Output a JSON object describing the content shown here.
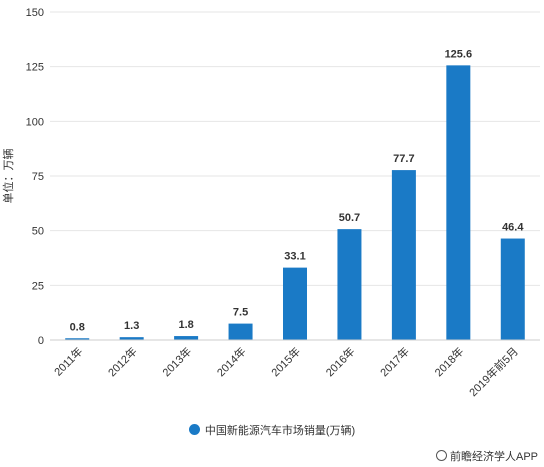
{
  "chart_data": {
    "type": "bar",
    "categories": [
      "2011年",
      "2012年",
      "2013年",
      "2014年",
      "2015年",
      "2016年",
      "2017年",
      "2018年",
      "2019年前5月"
    ],
    "values": [
      0.8,
      1.3,
      1.8,
      7.5,
      33.1,
      50.7,
      77.7,
      125.6,
      46.4
    ],
    "value_labels": [
      "0.8",
      "1.3",
      "1.8",
      "7.5",
      "33.1",
      "50.7",
      "77.7",
      "125.6",
      "46.4"
    ],
    "y_ticks": [
      0,
      25,
      50,
      75,
      100,
      125,
      150
    ],
    "ylim": [
      0,
      150
    ],
    "ylabel": "单位：万辆",
    "xlabel": "",
    "legend": {
      "label": "中国新能源汽车市场销量(万辆)",
      "position": "bottom"
    },
    "bar_color": "#1a7ac6",
    "grid": true
  },
  "brand": {
    "text": "前瞻经济学人APP",
    "icon": "qianzhan-logo-icon"
  }
}
